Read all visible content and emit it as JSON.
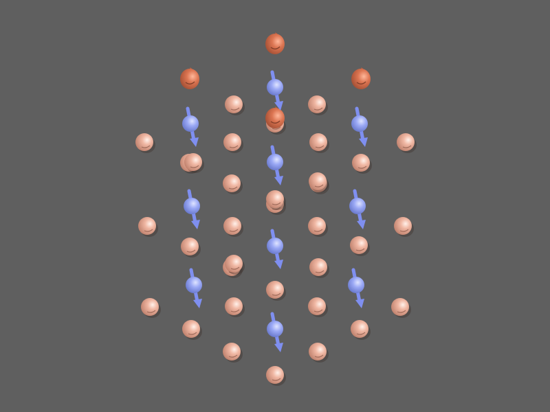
{
  "viewer": {
    "background": "#5f5f5f",
    "colors": {
      "pale_atom": "#e6a38c",
      "dark_atom": "#d46f4c",
      "spin_atom": "#8f9ff0",
      "spin_arrow": "#7f8ff0"
    },
    "scene": {
      "pale_atoms": 34,
      "dark_atoms": 4,
      "spin_atoms": 10,
      "spin_direction": "down"
    }
  }
}
